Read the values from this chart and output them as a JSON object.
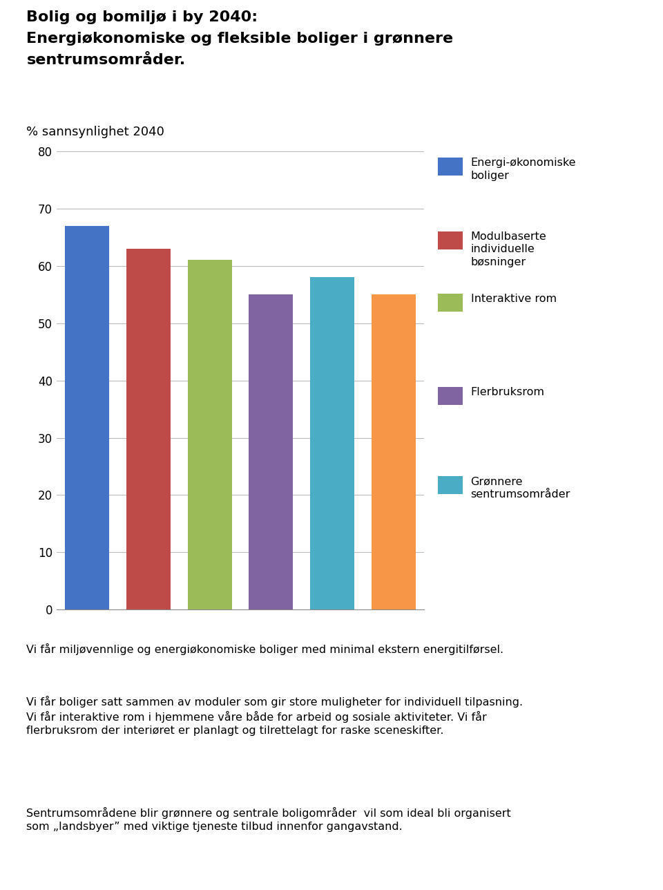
{
  "title_line1": "Bolig og bomiljø i by 2040:",
  "title_line2": "Energiøkonomiske og fleksible boliger i grønnere",
  "title_line3": "sentrumsområder.",
  "ylabel": "% sannsynlighet 2040",
  "values": [
    67,
    63,
    61,
    55,
    58,
    55
  ],
  "bar_colors": [
    "#4472C4",
    "#BE4B48",
    "#9BBB59",
    "#8064A2",
    "#4BACC6",
    "#F79646"
  ],
  "legend_labels": [
    "Energi-økonomiske\nboliger",
    "Modulbaserte\nindividuelle\nbøsninger",
    "Interaktive rom",
    "Flerbruksrom",
    "Grønnere\nsentrumsområder"
  ],
  "legend_colors": [
    "#4472C4",
    "#BE4B48",
    "#9BBB59",
    "#8064A2",
    "#4BACC6"
  ],
  "ylim": [
    0,
    80
  ],
  "yticks": [
    0,
    10,
    20,
    30,
    40,
    50,
    60,
    70,
    80
  ],
  "text1": "Vi får miljøvennlige og energiøkonomiske boliger med minimal ekstern energitilførsel.",
  "text2": "Vi får boliger satt sammen av moduler som gir store muligheter for individuell tilpasning.\nVi får interaktive rom i hjemmene våre både for arbeid og sosiale aktiviteter. Vi får\nflerbruksrom der intriøret er planlagt og tilrettelagt for raske sceneskifter.",
  "text2_exact": "Vi får boliger satt sammen av moduler som gir store muligheter for individuell tilpasning.\nVi får interaktive rom i hjemmene våre både for arbeid og sosiale aktiviteter. Vi får\nflerbruksrom der interiøret er planlagt og tilrettelagt for raske sceneskifter.",
  "text3": "Sentrumsområdene blir grønnere og sentrale boligområder  vil som ideal bli organisert\nsom „landsbyer” med viktige tjeneste tilbud innenfor gangavstand.",
  "background_color": "#FFFFFF"
}
